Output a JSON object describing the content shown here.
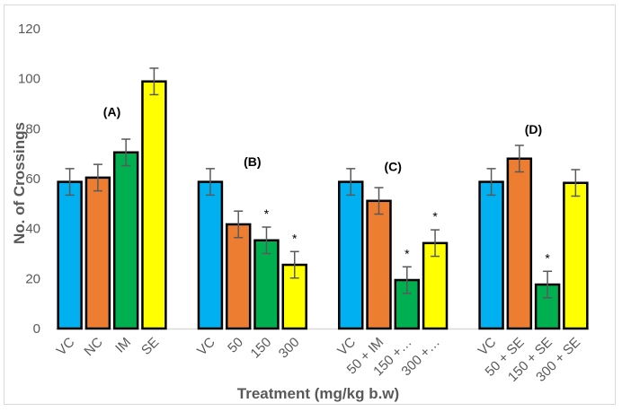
{
  "chart_data": {
    "type": "bar",
    "title": "",
    "xlabel": "Treatment (mg/kg b.w)",
    "ylabel": "No. of Crossings",
    "ylim": [
      0,
      120
    ],
    "yticks": [
      0,
      20,
      40,
      60,
      80,
      100,
      120
    ],
    "grid": false,
    "legend": "none",
    "colors": {
      "VC": "#00b0f0",
      "low": "#ed7d31",
      "mid": "#00b050",
      "high": "#ffff00",
      "outline": "#000000",
      "errorbar": "#595959"
    },
    "groups": [
      {
        "label": "(A)",
        "bars": [
          {
            "category": "VC",
            "value": 58.7,
            "error": 5.3,
            "color_key": "VC",
            "significant": false
          },
          {
            "category": "NC",
            "value": 60.4,
            "error": 5.3,
            "color_key": "low",
            "significant": false
          },
          {
            "category": "IM",
            "value": 70.5,
            "error": 5.3,
            "color_key": "mid",
            "significant": false
          },
          {
            "category": "SE",
            "value": 98.9,
            "error": 5.3,
            "color_key": "high",
            "significant": false
          }
        ]
      },
      {
        "label": "(B)",
        "bars": [
          {
            "category": "VC",
            "value": 58.7,
            "error": 5.3,
            "color_key": "VC",
            "significant": false
          },
          {
            "category": "50",
            "value": 41.7,
            "error": 5.3,
            "color_key": "low",
            "significant": false
          },
          {
            "category": "150",
            "value": 35.3,
            "error": 5.3,
            "color_key": "mid",
            "significant": true
          },
          {
            "category": "300",
            "value": 25.5,
            "error": 5.3,
            "color_key": "high",
            "significant": true
          }
        ]
      },
      {
        "label": "(C)",
        "bars": [
          {
            "category": "VC",
            "value": 58.7,
            "error": 5.3,
            "color_key": "VC",
            "significant": false
          },
          {
            "category": "50 + IM",
            "value": 51.1,
            "error": 5.3,
            "color_key": "low",
            "significant": false
          },
          {
            "category": "150 +…",
            "value": 19.4,
            "error": 5.3,
            "color_key": "mid",
            "significant": true
          },
          {
            "category": "300 +…",
            "value": 34.2,
            "error": 5.3,
            "color_key": "high",
            "significant": true
          }
        ]
      },
      {
        "label": "(D)",
        "bars": [
          {
            "category": "VC",
            "value": 58.7,
            "error": 5.3,
            "color_key": "VC",
            "significant": false
          },
          {
            "category": "50 + SE",
            "value": 68.0,
            "error": 5.3,
            "color_key": "low",
            "significant": false
          },
          {
            "category": "150 + SE",
            "value": 17.6,
            "error": 5.3,
            "color_key": "mid",
            "significant": true
          },
          {
            "category": "300 + SE",
            "value": 58.3,
            "error": 5.3,
            "color_key": "high",
            "significant": false
          }
        ]
      }
    ],
    "significance_marker": "*"
  }
}
